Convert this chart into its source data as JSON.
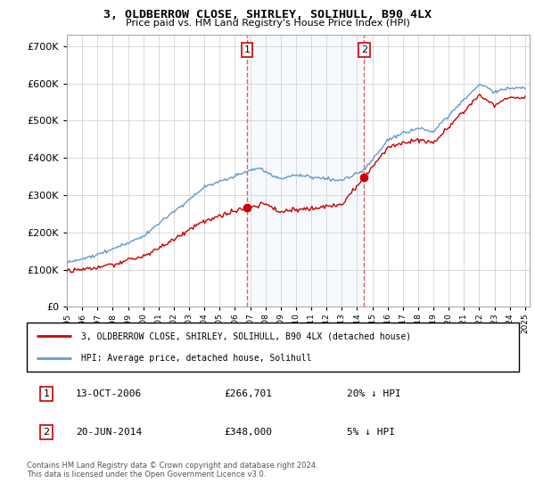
{
  "title": "3, OLDBERROW CLOSE, SHIRLEY, SOLIHULL, B90 4LX",
  "subtitle": "Price paid vs. HM Land Registry's House Price Index (HPI)",
  "ytick_values": [
    0,
    100000,
    200000,
    300000,
    400000,
    500000,
    600000,
    700000
  ],
  "ylim": [
    0,
    730000
  ],
  "purchase1": {
    "date_num": 2006.79,
    "price": 266701,
    "label": "1",
    "text": "13-OCT-2006",
    "amount": "£266,701",
    "pct": "20% ↓ HPI"
  },
  "purchase2": {
    "date_num": 2014.47,
    "price": 348000,
    "label": "2",
    "text": "20-JUN-2014",
    "amount": "£348,000",
    "pct": "5% ↓ HPI"
  },
  "line1_color": "#cc0000",
  "line2_color": "#6699cc",
  "line1_label": "3, OLDBERROW CLOSE, SHIRLEY, SOLIHULL, B90 4LX (detached house)",
  "line2_label": "HPI: Average price, detached house, Solihull",
  "vline_color": "#dd4444",
  "shade_color": "#ddeeff",
  "grid_color": "#cccccc",
  "bg_color": "#ffffff",
  "annotation_box_color": "#cc0000",
  "footer": "Contains HM Land Registry data © Crown copyright and database right 2024.\nThis data is licensed under the Open Government Licence v3.0."
}
